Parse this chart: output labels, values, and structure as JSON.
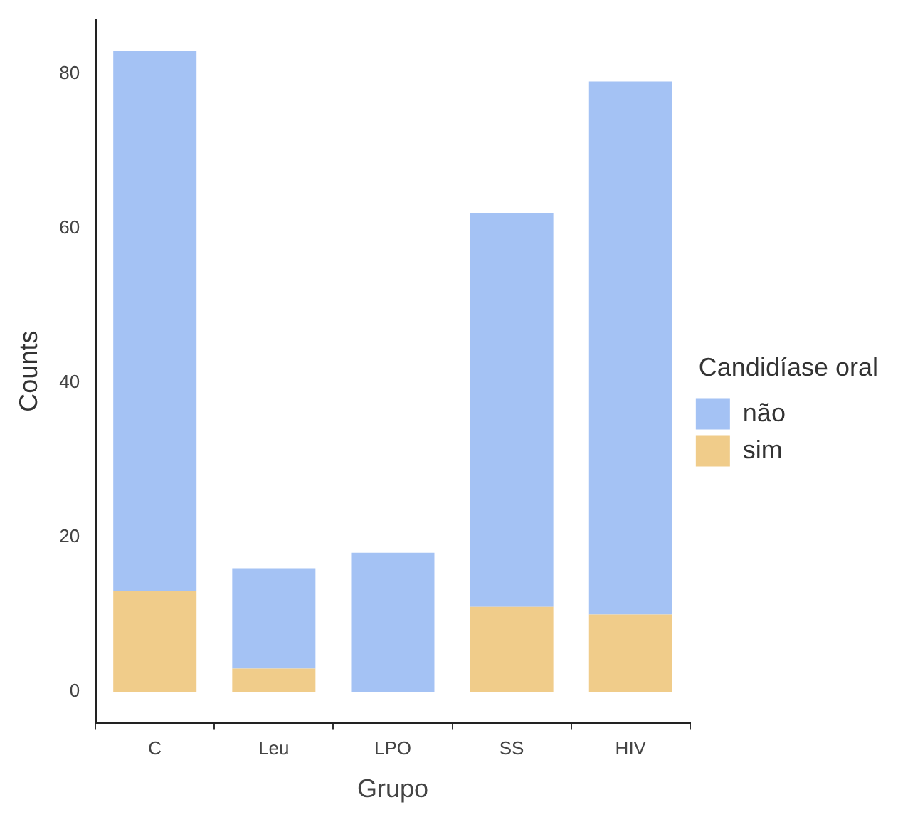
{
  "chart_data": {
    "type": "bar",
    "stacked": true,
    "xlabel": "Grupo",
    "ylabel": "Counts",
    "legend_title": "Candidíase oral",
    "legend": "right",
    "categories": [
      "C",
      "Leu",
      "LPO",
      "SS",
      "HIV"
    ],
    "series": [
      {
        "name": "sim",
        "color": "#f0cc8a",
        "values": [
          13,
          3,
          0,
          11,
          10
        ]
      },
      {
        "name": "não",
        "color": "#a4c2f4",
        "values": [
          70,
          13,
          18,
          51,
          69
        ]
      }
    ],
    "ylim": [
      -4,
      87
    ],
    "yticks": [
      0,
      20,
      40,
      60,
      80
    ],
    "grid": false
  }
}
